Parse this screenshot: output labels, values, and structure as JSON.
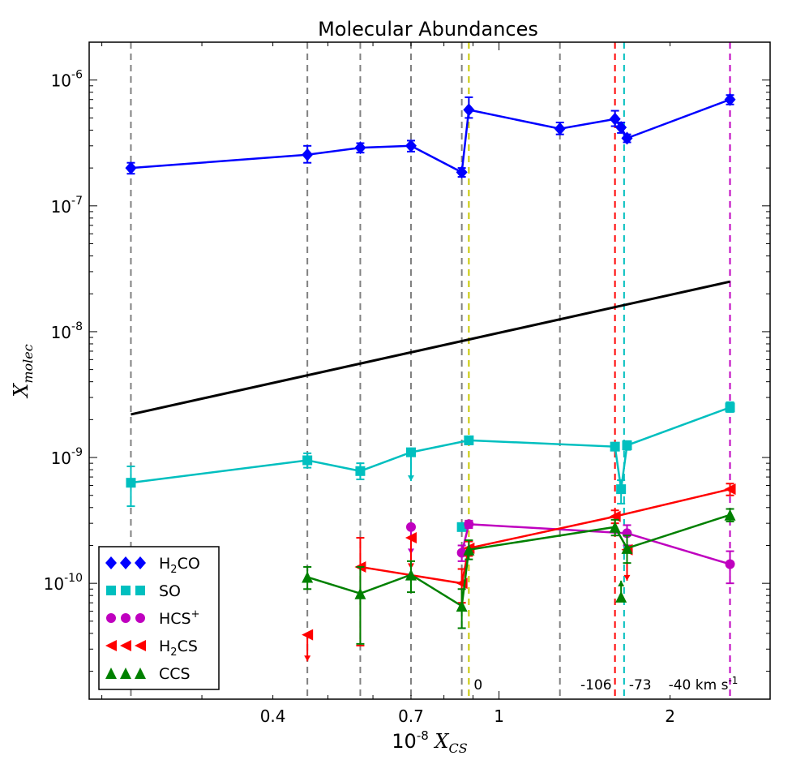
{
  "chart_data": {
    "type": "scatter",
    "title": "Molecular Abundances",
    "xlabel": "10^-8 X_CS",
    "ylabel": "X_molec",
    "xscale": "log",
    "yscale": "log",
    "xlim": [
      0.19,
      3.0
    ],
    "ylim": [
      1.2e-11,
      2e-06
    ],
    "x_ticks": [
      {
        "value": 0.4,
        "label": "0.4"
      },
      {
        "value": 0.7,
        "label": "0.7"
      },
      {
        "value": 1,
        "label": "1"
      },
      {
        "value": 2,
        "label": "2"
      }
    ],
    "y_ticks": [
      {
        "value": 1e-10,
        "base": "10",
        "exp": "-10"
      },
      {
        "value": 1e-09,
        "base": "10",
        "exp": "-9"
      },
      {
        "value": 1e-08,
        "base": "10",
        "exp": "-8"
      },
      {
        "value": 1e-07,
        "base": "10",
        "exp": "-7"
      },
      {
        "value": 1e-06,
        "base": "10",
        "exp": "-6"
      }
    ],
    "vertical_lines": [
      {
        "x": 0.225,
        "color": "#808080"
      },
      {
        "x": 0.46,
        "color": "#808080"
      },
      {
        "x": 0.57,
        "color": "#808080"
      },
      {
        "x": 0.7,
        "color": "#808080"
      },
      {
        "x": 0.86,
        "color": "#808080"
      },
      {
        "x": 0.885,
        "color": "#c8c800",
        "label": "0"
      },
      {
        "x": 1.28,
        "color": "#808080"
      },
      {
        "x": 1.6,
        "color": "#ff0000",
        "label": "-106"
      },
      {
        "x": 1.66,
        "color": "#00bfbf",
        "label": "-73"
      },
      {
        "x": 2.55,
        "color": "#bf00bf",
        "label": "-40 km s-1"
      }
    ],
    "series": [
      {
        "name": "H2CO",
        "color": "#0000ff",
        "marker": "diamond",
        "connected": true,
        "points": [
          {
            "x": 0.225,
            "y": 2e-07,
            "lo": 1.8e-07,
            "hi": 2.2e-07
          },
          {
            "x": 0.46,
            "y": 2.55e-07,
            "lo": 2.2e-07,
            "hi": 3e-07
          },
          {
            "x": 0.57,
            "y": 2.9e-07,
            "lo": 2.65e-07,
            "hi": 3.15e-07
          },
          {
            "x": 0.7,
            "y": 3e-07,
            "lo": 2.7e-07,
            "hi": 3.3e-07
          },
          {
            "x": 0.86,
            "y": 1.85e-07,
            "lo": 1.7e-07,
            "hi": 2e-07
          },
          {
            "x": 0.885,
            "y": 5.8e-07,
            "lo": 5e-07,
            "hi": 7.3e-07
          },
          {
            "x": 1.28,
            "y": 4.1e-07,
            "lo": 3.7e-07,
            "hi": 4.6e-07
          },
          {
            "x": 1.6,
            "y": 4.9e-07,
            "lo": 4.3e-07,
            "hi": 5.7e-07
          },
          {
            "x": 1.64,
            "y": 4.2e-07,
            "lo": 3.8e-07,
            "hi": 4.6e-07
          },
          {
            "x": 1.68,
            "y": 3.45e-07,
            "lo": 3.2e-07,
            "hi": 3.7e-07
          },
          {
            "x": 2.55,
            "y": 7e-07,
            "lo": 6.4e-07,
            "hi": 7.6e-07
          }
        ]
      },
      {
        "name": "SO",
        "color": "#00bfbf",
        "marker": "square",
        "connected": true,
        "points": [
          {
            "x": 0.225,
            "y": 6.3e-10,
            "lo": 4.1e-10,
            "hi": 8.5e-10
          },
          {
            "x": 0.46,
            "y": 9.5e-10,
            "lo": 8.3e-10,
            "hi": 1.08e-09
          },
          {
            "x": 0.57,
            "y": 7.8e-10,
            "lo": 6.7e-10,
            "hi": 9e-10
          },
          {
            "x": 0.7,
            "y": 1.1e-09,
            "upper_limit": true,
            "arrow_to": 6.5e-10
          },
          {
            "x": 0.885,
            "y": 1.37e-09,
            "lo": 1.27e-09,
            "hi": 1.45e-09
          },
          {
            "x": 1.6,
            "y": 1.22e-09,
            "lo": 1.15e-09,
            "hi": 1.3e-09
          },
          {
            "x": 1.64,
            "y": 5.6e-10,
            "lo": 4.3e-10,
            "hi": 6.6e-10
          },
          {
            "x": 1.68,
            "y": 1.25e-09,
            "lo": 1.15e-09,
            "hi": 1.35e-09
          },
          {
            "x": 2.55,
            "y": 2.5e-09,
            "lo": 2.3e-09,
            "hi": 2.75e-09
          }
        ],
        "extra_points": [
          {
            "x": 0.86,
            "y": 2.8e-10
          }
        ]
      },
      {
        "name": "HCS+",
        "color": "#bf00bf",
        "marker": "circle",
        "connected": true,
        "points": [
          {
            "x": 0.86,
            "y": 1.75e-10,
            "lo": 1.5e-10,
            "hi": 2e-10
          },
          {
            "x": 0.885,
            "y": 2.95e-10,
            "lo": 2.75e-10,
            "hi": 3.15e-10
          },
          {
            "x": 1.68,
            "y": 2.5e-10,
            "lo": 2e-10,
            "hi": 2.9e-10
          },
          {
            "x": 2.55,
            "y": 1.42e-10,
            "lo": 1e-10,
            "hi": 1.8e-10
          }
        ],
        "extra_points": [
          {
            "x": 0.7,
            "y": 2.8e-10,
            "upper_limit": true,
            "arrow_to": 1.7e-10
          }
        ]
      },
      {
        "name": "H2CS",
        "color": "#ff0000",
        "marker": "triangle-left",
        "connected": true,
        "points": [
          {
            "x": 0.57,
            "y": 1.35e-10,
            "lo": 3.2e-11,
            "hi": 2.3e-10
          },
          {
            "x": 0.86,
            "y": 1e-10,
            "lo": 7e-11,
            "hi": 1.3e-10
          },
          {
            "x": 0.885,
            "y": 1.9e-10,
            "lo": 1.65e-10,
            "hi": 2.15e-10
          },
          {
            "x": 1.6,
            "y": 3.4e-10,
            "lo": 3e-10,
            "hi": 3.8e-10
          },
          {
            "x": 2.55,
            "y": 5.6e-10,
            "lo": 5e-10,
            "hi": 6.2e-10
          }
        ],
        "extra_points": [
          {
            "x": 0.46,
            "y": 3.9e-11,
            "upper_limit": true,
            "arrow_to": 2.4e-11
          },
          {
            "x": 0.7,
            "y": 2.3e-10,
            "upper_limit": true,
            "arrow_to": 1.3e-10
          },
          {
            "x": 1.68,
            "y": 1.85e-10,
            "upper_limit": true,
            "arrow_to": 1.05e-10
          }
        ]
      },
      {
        "name": "CCS",
        "color": "#008000",
        "marker": "triangle-up",
        "connected": true,
        "points": [
          {
            "x": 0.46,
            "y": 1.12e-10,
            "lo": 9e-11,
            "hi": 1.35e-10
          },
          {
            "x": 0.57,
            "y": 8.3e-11,
            "lo": 3.3e-11,
            "hi": 1.35e-10
          },
          {
            "x": 0.7,
            "y": 1.17e-10,
            "lo": 8.5e-11,
            "hi": 1.5e-10
          },
          {
            "x": 0.86,
            "y": 6.6e-11,
            "lo": 4.4e-11,
            "hi": 9e-11
          },
          {
            "x": 0.885,
            "y": 1.85e-10,
            "lo": 1.55e-10,
            "hi": 2.2e-10
          },
          {
            "x": 1.6,
            "y": 2.8e-10,
            "lo": 2.4e-10,
            "hi": 3.2e-10
          },
          {
            "x": 1.68,
            "y": 1.9e-10,
            "lo": 1.45e-10,
            "hi": 2.4e-10
          },
          {
            "x": 2.55,
            "y": 3.5e-10,
            "lo": 3.1e-10,
            "hi": 3.9e-10
          }
        ],
        "extra_points": [
          {
            "x": 1.64,
            "y": 7.8e-11,
            "lower_limit": true,
            "arrow_to": 1.05e-10
          }
        ]
      }
    ],
    "reference_line": {
      "color": "#000000",
      "x": [
        0.225,
        2.55
      ],
      "y": [
        2.2e-09,
        2.5e-08
      ]
    },
    "legend": {
      "position": "lower-left",
      "entries": [
        {
          "series": "H2CO",
          "base": "H",
          "sub": "2",
          "rest": "CO"
        },
        {
          "series": "SO",
          "base": "SO",
          "sub": "",
          "rest": ""
        },
        {
          "series": "HCS+",
          "base": "HCS",
          "sup": "+",
          "rest": ""
        },
        {
          "series": "H2CS",
          "base": "H",
          "sub": "2",
          "rest": "CS"
        },
        {
          "series": "CCS",
          "base": "CCS",
          "sub": "",
          "rest": ""
        }
      ]
    }
  }
}
